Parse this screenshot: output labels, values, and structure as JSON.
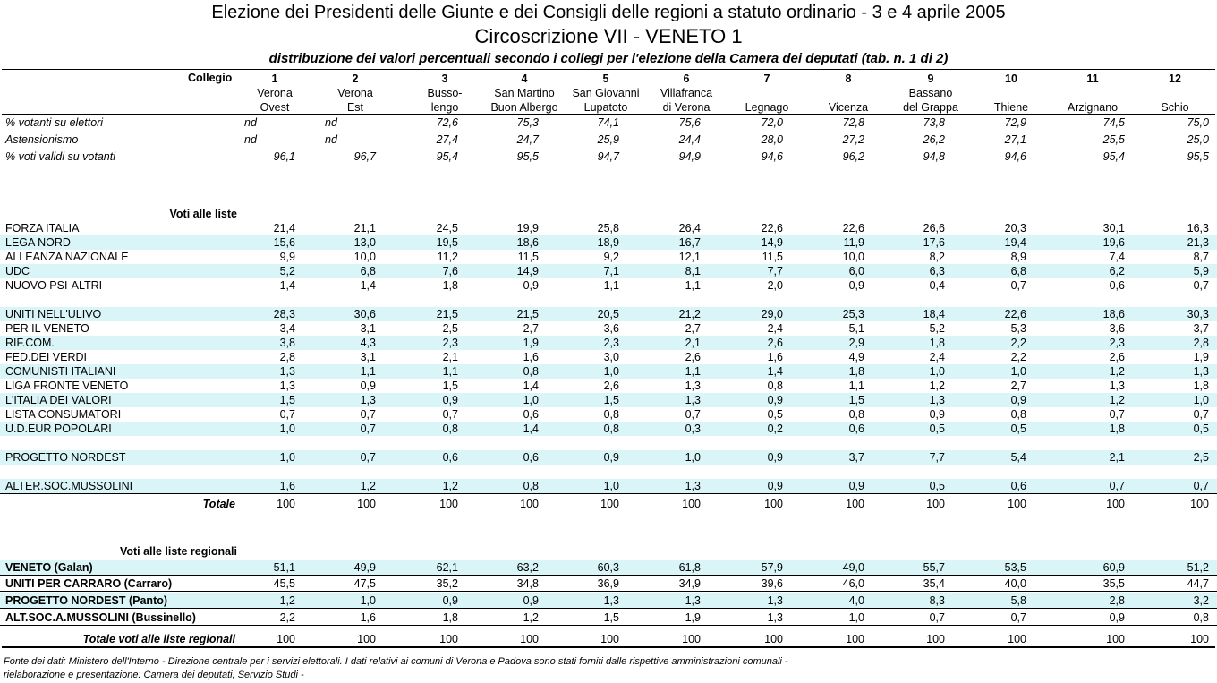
{
  "title": {
    "line1": "Elezione dei Presidenti delle Giunte e dei Consigli delle regioni a statuto ordinario - 3 e 4 aprile 2005",
    "line2": "Circoscrizione VII - VENETO 1",
    "line3": "distribuzione dei  valori percentuali  secondo i collegi per l'elezione della Camera dei deputati (tab. n. 1 di 2)"
  },
  "header": {
    "label": "Collegio",
    "columns": [
      {
        "num": "1",
        "l1": "Verona",
        "l2": "Ovest"
      },
      {
        "num": "2",
        "l1": "Verona",
        "l2": "Est"
      },
      {
        "num": "3",
        "l1": "Busso-",
        "l2": "lengo"
      },
      {
        "num": "4",
        "l1": "San Martino",
        "l2": "Buon Albergo"
      },
      {
        "num": "5",
        "l1": "San Giovanni",
        "l2": "Lupatoto"
      },
      {
        "num": "6",
        "l1": "Villafranca",
        "l2": "di Verona"
      },
      {
        "num": "7",
        "l1": "",
        "l2": "Legnago"
      },
      {
        "num": "8",
        "l1": "",
        "l2": "Vicenza"
      },
      {
        "num": "9",
        "l1": "Bassano",
        "l2": "del Grappa"
      },
      {
        "num": "10",
        "l1": "",
        "l2": "Thiene"
      },
      {
        "num": "11",
        "l1": "",
        "l2": "Arzignano"
      },
      {
        "num": "12",
        "l1": "",
        "l2": "Schio"
      }
    ]
  },
  "stats": [
    {
      "label": "% votanti su elettori",
      "values": [
        "nd",
        "nd",
        "72,6",
        "75,3",
        "74,1",
        "75,6",
        "72,0",
        "72,8",
        "73,8",
        "72,9",
        "74,5",
        "75,0"
      ]
    },
    {
      "label": "Astensionismo",
      "values": [
        "nd",
        "nd",
        "27,4",
        "24,7",
        "25,9",
        "24,4",
        "28,0",
        "27,2",
        "26,2",
        "27,1",
        "25,5",
        "25,0"
      ]
    },
    {
      "label": "% voti validi su votanti",
      "values": [
        "96,1",
        "96,7",
        "95,4",
        "95,5",
        "94,7",
        "94,9",
        "94,6",
        "96,2",
        "94,8",
        "94,6",
        "95,4",
        "95,5"
      ]
    }
  ],
  "liste_title": "Voti alle liste",
  "liste": [
    {
      "label": "FORZA ITALIA",
      "values": [
        "21,4",
        "21,1",
        "24,5",
        "19,9",
        "25,8",
        "26,4",
        "22,6",
        "22,6",
        "26,6",
        "20,3",
        "30,1",
        "16,3"
      ]
    },
    {
      "label": "LEGA NORD",
      "values": [
        "15,6",
        "13,0",
        "19,5",
        "18,6",
        "18,9",
        "16,7",
        "14,9",
        "11,9",
        "17,6",
        "19,4",
        "19,6",
        "21,3"
      ]
    },
    {
      "label": "ALLEANZA NAZIONALE",
      "values": [
        "9,9",
        "10,0",
        "11,2",
        "11,5",
        "9,2",
        "12,1",
        "11,5",
        "10,0",
        "8,2",
        "8,9",
        "7,4",
        "8,7"
      ]
    },
    {
      "label": "UDC",
      "values": [
        "5,2",
        "6,8",
        "7,6",
        "14,9",
        "7,1",
        "8,1",
        "7,7",
        "6,0",
        "6,3",
        "6,8",
        "6,2",
        "5,9"
      ]
    },
    {
      "label": "NUOVO PSI-ALTRI",
      "values": [
        "1,4",
        "1,4",
        "1,8",
        "0,9",
        "1,1",
        "1,1",
        "2,0",
        "0,9",
        "0,4",
        "0,7",
        "0,6",
        "0,7"
      ]
    },
    {
      "label": "UNITI NELL'ULIVO",
      "values": [
        "28,3",
        "30,6",
        "21,5",
        "21,5",
        "20,5",
        "21,2",
        "29,0",
        "25,3",
        "18,4",
        "22,6",
        "18,6",
        "30,3"
      ]
    },
    {
      "label": "PER IL VENETO",
      "values": [
        "3,4",
        "3,1",
        "2,5",
        "2,7",
        "3,6",
        "2,7",
        "2,4",
        "5,1",
        "5,2",
        "5,3",
        "3,6",
        "3,7"
      ]
    },
    {
      "label": "RIF.COM.",
      "values": [
        "3,8",
        "4,3",
        "2,3",
        "1,9",
        "2,3",
        "2,1",
        "2,6",
        "2,9",
        "1,8",
        "2,2",
        "2,3",
        "2,8"
      ]
    },
    {
      "label": "FED.DEI VERDI",
      "values": [
        "2,8",
        "3,1",
        "2,1",
        "1,6",
        "3,0",
        "2,6",
        "1,6",
        "4,9",
        "2,4",
        "2,2",
        "2,6",
        "1,9"
      ]
    },
    {
      "label": "COMUNISTI ITALIANI",
      "values": [
        "1,3",
        "1,1",
        "1,1",
        "0,8",
        "1,0",
        "1,1",
        "1,4",
        "1,8",
        "1,0",
        "1,0",
        "1,2",
        "1,3"
      ]
    },
    {
      "label": "LIGA FRONTE VENETO",
      "values": [
        "1,3",
        "0,9",
        "1,5",
        "1,4",
        "2,6",
        "1,3",
        "0,8",
        "1,1",
        "1,2",
        "2,7",
        "1,3",
        "1,8"
      ]
    },
    {
      "label": "L'ITALIA DEI VALORI",
      "values": [
        "1,5",
        "1,3",
        "0,9",
        "1,0",
        "1,5",
        "1,3",
        "0,9",
        "1,5",
        "1,3",
        "0,9",
        "1,2",
        "1,0"
      ]
    },
    {
      "label": "LISTA CONSUMATORI",
      "values": [
        "0,7",
        "0,7",
        "0,7",
        "0,6",
        "0,8",
        "0,7",
        "0,5",
        "0,8",
        "0,9",
        "0,8",
        "0,7",
        "0,7"
      ]
    },
    {
      "label": "U.D.EUR POPOLARI",
      "values": [
        "1,0",
        "0,7",
        "0,8",
        "1,4",
        "0,8",
        "0,3",
        "0,2",
        "0,6",
        "0,5",
        "0,5",
        "1,8",
        "0,5"
      ]
    },
    {
      "label": "PROGETTO NORDEST",
      "values": [
        "1,0",
        "0,7",
        "0,6",
        "0,6",
        "0,9",
        "1,0",
        "0,9",
        "3,7",
        "7,7",
        "5,4",
        "2,1",
        "2,5"
      ]
    },
    {
      "label": "ALTER.SOC.MUSSOLINI",
      "values": [
        "1,6",
        "1,2",
        "1,2",
        "0,8",
        "1,0",
        "1,3",
        "0,9",
        "0,9",
        "0,5",
        "0,6",
        "0,7",
        "0,7"
      ]
    }
  ],
  "totale": {
    "label": "Totale",
    "values": [
      "100",
      "100",
      "100",
      "100",
      "100",
      "100",
      "100",
      "100",
      "100",
      "100",
      "100",
      "100"
    ]
  },
  "regionali_title": "Voti alle liste regionali",
  "regionali": [
    {
      "label": "VENETO (Galan)",
      "values": [
        "51,1",
        "49,9",
        "62,1",
        "63,2",
        "60,3",
        "61,8",
        "57,9",
        "49,0",
        "55,7",
        "53,5",
        "60,9",
        "51,2"
      ]
    },
    {
      "label": "UNITI PER CARRARO (Carraro)",
      "values": [
        "45,5",
        "47,5",
        "35,2",
        "34,8",
        "36,9",
        "34,9",
        "39,6",
        "46,0",
        "35,4",
        "40,0",
        "35,5",
        "44,7"
      ]
    },
    {
      "label": "PROGETTO NORDEST (Panto)",
      "values": [
        "1,2",
        "1,0",
        "0,9",
        "0,9",
        "1,3",
        "1,3",
        "1,3",
        "4,0",
        "8,3",
        "5,8",
        "2,8",
        "3,2"
      ]
    },
    {
      "label": "ALT.SOC.A.MUSSOLINI (Bussinello)",
      "values": [
        "2,2",
        "1,6",
        "1,8",
        "1,2",
        "1,5",
        "1,9",
        "1,3",
        "1,0",
        "0,7",
        "0,7",
        "0,9",
        "0,8"
      ]
    }
  ],
  "totale_regionali": {
    "label": "Totale voti alle liste regionali",
    "values": [
      "100",
      "100",
      "100",
      "100",
      "100",
      "100",
      "100",
      "100",
      "100",
      "100",
      "100",
      "100"
    ]
  },
  "footnote": {
    "line1": "Fonte dei dati: Ministero dell'Interno - Direzione centrale per i servizi elettorali. I dati relativi ai comuni di Verona e Padova  sono stati forniti dalle rispettive amministrazioni comunali -",
    "line2": "rielaborazione e presentazione: Camera dei deputati, Servizio Studi -"
  }
}
